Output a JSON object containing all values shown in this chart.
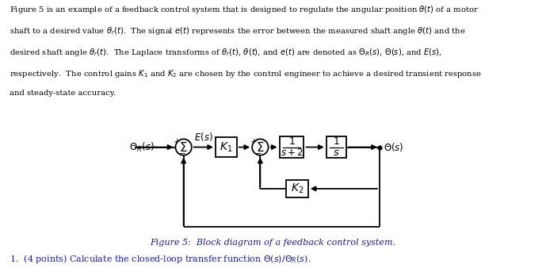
{
  "bg_color": "#ffffff",
  "text_color": "#000000",
  "blue_color": "#1a1aaa",
  "diagram_color": "#000000",
  "caption": "Figure 5:  Block diagram of a feedback control system.",
  "question": "1.  (4 points) Calculate the closed-loop transfer function $\\Theta(s)/\\Theta_R(s)$."
}
